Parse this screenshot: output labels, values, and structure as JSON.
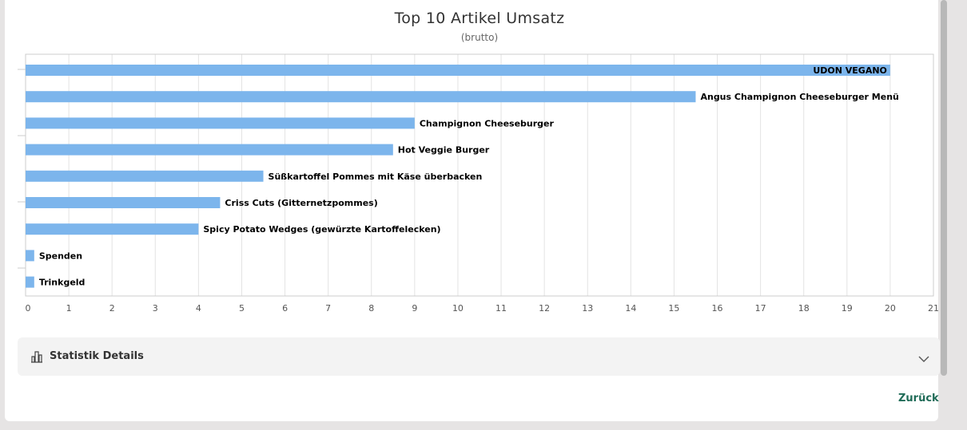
{
  "chart_data": {
    "type": "bar",
    "orientation": "horizontal",
    "title": "Top 10 Artikel Umsatz",
    "subtitle": "(brutto)",
    "categories": [
      "UDON VEGANO",
      "Angus Champignon Cheeseburger Menü",
      "Champignon Cheeseburger",
      "Hot Veggie Burger",
      "Süßkartoffel Pommes mit Käse überbacken",
      "Criss Cuts (Gitternetzpommes)",
      "Spicy Potato Wedges (gewürzte Kartoffelecken)",
      "Spenden",
      "Trinkgeld"
    ],
    "values": [
      20,
      15.5,
      9,
      8.5,
      5.5,
      4.5,
      4,
      0.2,
      0.2
    ],
    "xlim": [
      0,
      21
    ],
    "x_ticks": [
      "0",
      "1",
      "2",
      "3",
      "4",
      "5",
      "6",
      "7",
      "8",
      "9",
      "10",
      "11",
      "12",
      "13",
      "14",
      "15",
      "16",
      "17",
      "18",
      "19",
      "20",
      "21"
    ],
    "grid": true,
    "bar_color": "#7cb5ec"
  },
  "details": {
    "label": "Statistik Details",
    "icon": "bar-chart-icon",
    "toggle_icon": "chevron-down-icon"
  },
  "footer": {
    "back_label": "Zurück",
    "link_color": "#1f6b57"
  }
}
